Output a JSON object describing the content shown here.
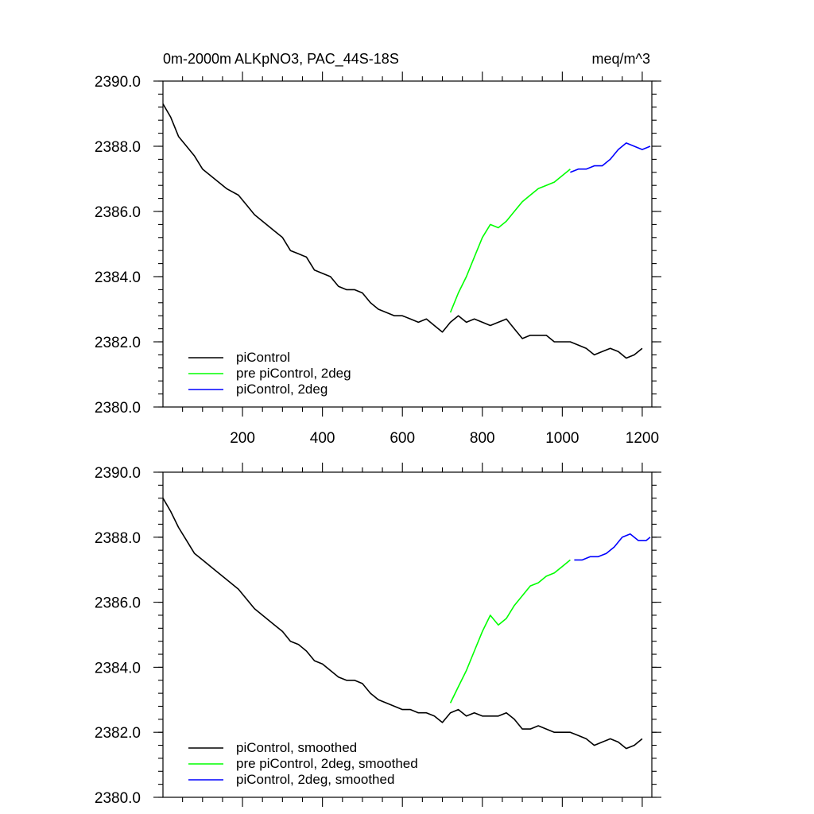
{
  "chart_data": [
    {
      "type": "line",
      "title": "0m-2000m ALKpNO3, PAC_44S-18S",
      "units": "meq/m^3",
      "xlim": [
        1,
        1224
      ],
      "ylim": [
        2380.0,
        2390.0
      ],
      "x_ticks": [
        200,
        400,
        600,
        800,
        1000,
        1200
      ],
      "x_tick_labels": [
        "200",
        "400",
        "600",
        "800",
        "1000",
        "1200"
      ],
      "y_ticks": [
        2380.0,
        2382.0,
        2384.0,
        2386.0,
        2388.0,
        2390.0
      ],
      "y_tick_labels": [
        "2380.0",
        "2382.0",
        "2384.0",
        "2386.0",
        "2388.0",
        "2390.0"
      ],
      "legend_position": "bottom-left",
      "series": [
        {
          "name": "piControl",
          "color": "#000000",
          "points": [
            [
              1,
              2389.3
            ],
            [
              20,
              2388.9
            ],
            [
              40,
              2388.3
            ],
            [
              60,
              2388.0
            ],
            [
              80,
              2387.7
            ],
            [
              100,
              2387.3
            ],
            [
              130,
              2387.0
            ],
            [
              160,
              2386.7
            ],
            [
              190,
              2386.5
            ],
            [
              210,
              2386.2
            ],
            [
              230,
              2385.9
            ],
            [
              260,
              2385.6
            ],
            [
              280,
              2385.4
            ],
            [
              300,
              2385.2
            ],
            [
              320,
              2384.8
            ],
            [
              340,
              2384.7
            ],
            [
              360,
              2384.6
            ],
            [
              380,
              2384.2
            ],
            [
              400,
              2384.1
            ],
            [
              420,
              2384.0
            ],
            [
              440,
              2383.7
            ],
            [
              460,
              2383.6
            ],
            [
              480,
              2383.6
            ],
            [
              500,
              2383.5
            ],
            [
              520,
              2383.2
            ],
            [
              540,
              2383.0
            ],
            [
              560,
              2382.9
            ],
            [
              580,
              2382.8
            ],
            [
              600,
              2382.8
            ],
            [
              620,
              2382.7
            ],
            [
              640,
              2382.6
            ],
            [
              660,
              2382.7
            ],
            [
              680,
              2382.5
            ],
            [
              700,
              2382.3
            ],
            [
              720,
              2382.6
            ],
            [
              740,
              2382.8
            ],
            [
              760,
              2382.6
            ],
            [
              780,
              2382.7
            ],
            [
              800,
              2382.6
            ],
            [
              820,
              2382.5
            ],
            [
              840,
              2382.6
            ],
            [
              860,
              2382.7
            ],
            [
              880,
              2382.4
            ],
            [
              900,
              2382.1
            ],
            [
              920,
              2382.2
            ],
            [
              940,
              2382.2
            ],
            [
              960,
              2382.2
            ],
            [
              980,
              2382.0
            ],
            [
              1000,
              2382.0
            ],
            [
              1020,
              2382.0
            ],
            [
              1040,
              2381.9
            ],
            [
              1060,
              2381.8
            ],
            [
              1080,
              2381.6
            ],
            [
              1100,
              2381.7
            ],
            [
              1120,
              2381.8
            ],
            [
              1140,
              2381.7
            ],
            [
              1160,
              2381.5
            ],
            [
              1180,
              2381.6
            ],
            [
              1200,
              2381.8
            ]
          ]
        },
        {
          "name": "pre piControl, 2deg",
          "color": "#00ff00",
          "points": [
            [
              720,
              2382.9
            ],
            [
              740,
              2383.5
            ],
            [
              760,
              2384.0
            ],
            [
              780,
              2384.6
            ],
            [
              800,
              2385.2
            ],
            [
              820,
              2385.6
            ],
            [
              840,
              2385.5
            ],
            [
              860,
              2385.7
            ],
            [
              880,
              2386.0
            ],
            [
              900,
              2386.3
            ],
            [
              920,
              2386.5
            ],
            [
              940,
              2386.7
            ],
            [
              960,
              2386.8
            ],
            [
              980,
              2386.9
            ],
            [
              1000,
              2387.1
            ],
            [
              1020,
              2387.3
            ]
          ]
        },
        {
          "name": "piControl, 2deg",
          "color": "#0000ff",
          "points": [
            [
              1020,
              2387.2
            ],
            [
              1040,
              2387.3
            ],
            [
              1060,
              2387.3
            ],
            [
              1080,
              2387.4
            ],
            [
              1100,
              2387.4
            ],
            [
              1120,
              2387.6
            ],
            [
              1140,
              2387.9
            ],
            [
              1160,
              2388.1
            ],
            [
              1180,
              2388.0
            ],
            [
              1200,
              2387.9
            ],
            [
              1220,
              2388.0
            ]
          ]
        }
      ]
    },
    {
      "type": "line",
      "title": "",
      "xlim": [
        1,
        1224
      ],
      "ylim": [
        2380.0,
        2390.0
      ],
      "y_ticks": [
        2380.0,
        2382.0,
        2384.0,
        2386.0,
        2388.0,
        2390.0
      ],
      "y_tick_labels": [
        "2380.0",
        "2382.0",
        "2384.0",
        "2386.0",
        "2388.0",
        "2390.0"
      ],
      "legend_position": "bottom-left",
      "series": [
        {
          "name": "piControl, smoothed",
          "color": "#000000",
          "points": [
            [
              1,
              2389.2
            ],
            [
              20,
              2388.8
            ],
            [
              40,
              2388.3
            ],
            [
              60,
              2387.9
            ],
            [
              80,
              2387.5
            ],
            [
              100,
              2387.3
            ],
            [
              130,
              2387.0
            ],
            [
              160,
              2386.7
            ],
            [
              190,
              2386.4
            ],
            [
              210,
              2386.1
            ],
            [
              230,
              2385.8
            ],
            [
              260,
              2385.5
            ],
            [
              280,
              2385.3
            ],
            [
              300,
              2385.1
            ],
            [
              320,
              2384.8
            ],
            [
              340,
              2384.7
            ],
            [
              360,
              2384.5
            ],
            [
              380,
              2384.2
            ],
            [
              400,
              2384.1
            ],
            [
              420,
              2383.9
            ],
            [
              440,
              2383.7
            ],
            [
              460,
              2383.6
            ],
            [
              480,
              2383.6
            ],
            [
              500,
              2383.5
            ],
            [
              520,
              2383.2
            ],
            [
              540,
              2383.0
            ],
            [
              560,
              2382.9
            ],
            [
              580,
              2382.8
            ],
            [
              600,
              2382.7
            ],
            [
              620,
              2382.7
            ],
            [
              640,
              2382.6
            ],
            [
              660,
              2382.6
            ],
            [
              680,
              2382.5
            ],
            [
              700,
              2382.3
            ],
            [
              720,
              2382.6
            ],
            [
              740,
              2382.7
            ],
            [
              760,
              2382.5
            ],
            [
              780,
              2382.6
            ],
            [
              800,
              2382.5
            ],
            [
              820,
              2382.5
            ],
            [
              840,
              2382.5
            ],
            [
              860,
              2382.6
            ],
            [
              880,
              2382.4
            ],
            [
              900,
              2382.1
            ],
            [
              920,
              2382.1
            ],
            [
              940,
              2382.2
            ],
            [
              960,
              2382.1
            ],
            [
              980,
              2382.0
            ],
            [
              1000,
              2382.0
            ],
            [
              1020,
              2382.0
            ],
            [
              1040,
              2381.9
            ],
            [
              1060,
              2381.8
            ],
            [
              1080,
              2381.6
            ],
            [
              1100,
              2381.7
            ],
            [
              1120,
              2381.8
            ],
            [
              1140,
              2381.7
            ],
            [
              1160,
              2381.5
            ],
            [
              1180,
              2381.6
            ],
            [
              1200,
              2381.8
            ]
          ]
        },
        {
          "name": "pre piControl, 2deg, smoothed",
          "color": "#00ff00",
          "points": [
            [
              720,
              2382.9
            ],
            [
              740,
              2383.4
            ],
            [
              760,
              2383.9
            ],
            [
              780,
              2384.5
            ],
            [
              800,
              2385.1
            ],
            [
              820,
              2385.6
            ],
            [
              840,
              2385.3
            ],
            [
              860,
              2385.5
            ],
            [
              880,
              2385.9
            ],
            [
              900,
              2386.2
            ],
            [
              920,
              2386.5
            ],
            [
              940,
              2386.6
            ],
            [
              960,
              2386.8
            ],
            [
              980,
              2386.9
            ],
            [
              1000,
              2387.1
            ],
            [
              1020,
              2387.3
            ]
          ]
        },
        {
          "name": "piControl, 2deg, smoothed",
          "color": "#0000ff",
          "points": [
            [
              1030,
              2387.3
            ],
            [
              1050,
              2387.3
            ],
            [
              1070,
              2387.4
            ],
            [
              1090,
              2387.4
            ],
            [
              1110,
              2387.5
            ],
            [
              1130,
              2387.7
            ],
            [
              1150,
              2388.0
            ],
            [
              1170,
              2388.1
            ],
            [
              1190,
              2387.9
            ],
            [
              1210,
              2387.9
            ],
            [
              1220,
              2388.0
            ]
          ]
        }
      ]
    }
  ]
}
